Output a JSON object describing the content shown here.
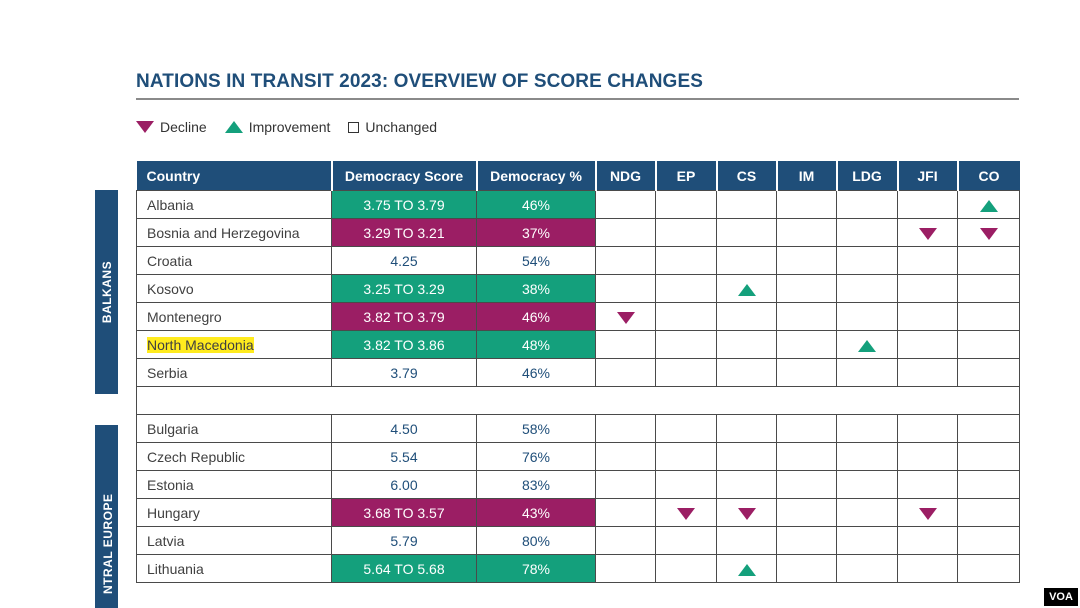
{
  "title": "NATIONS IN TRANSIT 2023: OVERVIEW OF SCORE CHANGES",
  "legend": {
    "decline": "Decline",
    "improvement": "Improvement",
    "unchanged": "Unchanged"
  },
  "colors": {
    "navy": "#1f4e79",
    "improvement_green": "#14a07c",
    "decline_purple": "#9b1e64",
    "highlight_yellow": "#ffeb1e"
  },
  "table": {
    "headers": [
      "Country",
      "Democracy Score",
      "Democracy %",
      "NDG",
      "EP",
      "CS",
      "IM",
      "LDG",
      "JFI",
      "CO"
    ],
    "rows": [
      {
        "country": "Albania",
        "score": "3.75 TO 3.79",
        "pct": "46%",
        "status": "improvement",
        "NDG": "",
        "EP": "",
        "CS": "",
        "IM": "",
        "LDG": "",
        "JFI": "",
        "CO": "up"
      },
      {
        "country": "Bosnia and Herzegovina",
        "score": "3.29 TO 3.21",
        "pct": "37%",
        "status": "decline",
        "NDG": "",
        "EP": "",
        "CS": "",
        "IM": "",
        "LDG": "",
        "JFI": "down",
        "CO": "down"
      },
      {
        "country": "Croatia",
        "score": "4.25",
        "pct": "54%",
        "status": "unchanged",
        "NDG": "",
        "EP": "",
        "CS": "",
        "IM": "",
        "LDG": "",
        "JFI": "",
        "CO": ""
      },
      {
        "country": "Kosovo",
        "score": "3.25 TO 3.29",
        "pct": "38%",
        "status": "improvement",
        "NDG": "",
        "EP": "",
        "CS": "up",
        "IM": "",
        "LDG": "",
        "JFI": "",
        "CO": ""
      },
      {
        "country": "Montenegro",
        "score": "3.82 TO 3.79",
        "pct": "46%",
        "status": "decline",
        "NDG": "down",
        "EP": "",
        "CS": "",
        "IM": "",
        "LDG": "",
        "JFI": "",
        "CO": ""
      },
      {
        "country": "North Macedonia",
        "score": "3.82 TO 3.86",
        "pct": "48%",
        "status": "improvement",
        "highlight": true,
        "NDG": "",
        "EP": "",
        "CS": "",
        "IM": "",
        "LDG": "up",
        "JFI": "",
        "CO": ""
      },
      {
        "country": "Serbia",
        "score": "3.79",
        "pct": "46%",
        "status": "unchanged",
        "NDG": "",
        "EP": "",
        "CS": "",
        "IM": "",
        "LDG": "",
        "JFI": "",
        "CO": ""
      },
      {
        "separator": true
      },
      {
        "country": "Bulgaria",
        "score": "4.50",
        "pct": "58%",
        "status": "unchanged",
        "NDG": "",
        "EP": "",
        "CS": "",
        "IM": "",
        "LDG": "",
        "JFI": "",
        "CO": ""
      },
      {
        "country": "Czech Republic",
        "score": "5.54",
        "pct": "76%",
        "status": "unchanged",
        "NDG": "",
        "EP": "",
        "CS": "",
        "IM": "",
        "LDG": "",
        "JFI": "",
        "CO": ""
      },
      {
        "country": "Estonia",
        "score": "6.00",
        "pct": "83%",
        "status": "unchanged",
        "NDG": "",
        "EP": "",
        "CS": "",
        "IM": "",
        "LDG": "",
        "JFI": "",
        "CO": ""
      },
      {
        "country": "Hungary",
        "score": "3.68 TO 3.57",
        "pct": "43%",
        "status": "decline",
        "NDG": "",
        "EP": "down",
        "CS": "down",
        "IM": "",
        "LDG": "",
        "JFI": "down",
        "CO": ""
      },
      {
        "country": "Latvia",
        "score": "5.79",
        "pct": "80%",
        "status": "unchanged",
        "NDG": "",
        "EP": "",
        "CS": "",
        "IM": "",
        "LDG": "",
        "JFI": "",
        "CO": ""
      },
      {
        "country": "Lithuania",
        "score": "5.64 TO 5.68",
        "pct": "78%",
        "status": "improvement",
        "NDG": "",
        "EP": "",
        "CS": "up",
        "IM": "",
        "LDG": "",
        "JFI": "",
        "CO": ""
      }
    ]
  },
  "regions": {
    "balkans": "BALKANS",
    "central_europe": "NTRAL EUROPE"
  },
  "watermark": "VOA"
}
